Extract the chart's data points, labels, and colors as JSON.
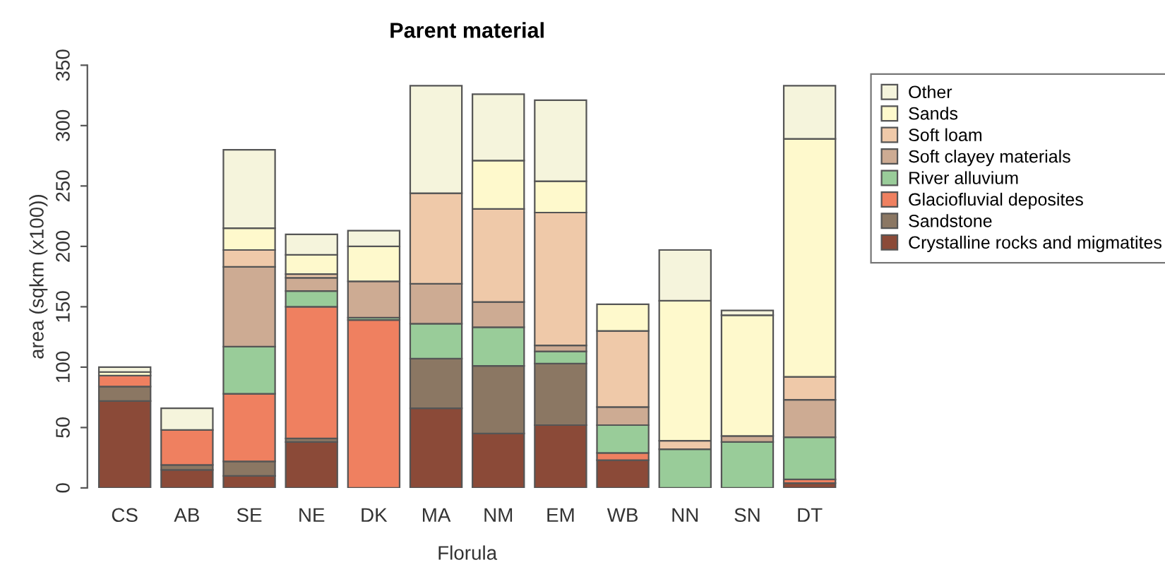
{
  "chart_data": {
    "type": "bar",
    "title": "Parent material",
    "xlabel": "Florula",
    "ylabel": "area (sqkm (x100))",
    "categories": [
      "CS",
      "AB",
      "SE",
      "NE",
      "DK",
      "MA",
      "NM",
      "EM",
      "WB",
      "NN",
      "SN",
      "DT"
    ],
    "stacked": true,
    "ylim": [
      0,
      350
    ],
    "yticks": [
      0,
      50,
      100,
      150,
      200,
      250,
      300,
      350
    ],
    "grid": false,
    "legend": "top right",
    "series": [
      {
        "name": "Crystalline rocks and migmatites",
        "color": "#8b4a38",
        "values": [
          72,
          15,
          10,
          38,
          null,
          66,
          45,
          52,
          23,
          null,
          null,
          4
        ]
      },
      {
        "name": "Sandstone",
        "color": "#8b7763",
        "values": [
          12,
          4,
          12,
          3,
          0,
          41,
          56,
          51,
          0,
          0,
          0,
          0
        ]
      },
      {
        "name": "Glaciofluvial deposites",
        "color": "#ef8060",
        "values": [
          9,
          29,
          56,
          109,
          139,
          0,
          0,
          0,
          6,
          0,
          null,
          3
        ]
      },
      {
        "name": "River alluvium",
        "color": "#99cc99",
        "values": [
          0,
          0,
          39,
          13,
          2,
          29,
          32,
          10,
          23,
          32,
          38,
          35
        ]
      },
      {
        "name": "Soft clayey materials",
        "color": "#cdab93",
        "values": [
          0,
          0,
          66,
          11,
          30,
          33,
          21,
          5,
          15,
          0,
          5,
          31
        ]
      },
      {
        "name": "Soft loam",
        "color": "#efc9a9",
        "values": [
          null,
          0,
          14,
          3,
          0,
          75,
          77,
          110,
          63,
          7,
          0,
          19
        ]
      },
      {
        "name": "Sands",
        "color": "#fef9cc",
        "values": [
          3,
          0,
          18,
          16,
          29,
          0,
          40,
          26,
          22,
          116,
          100,
          197
        ]
      },
      {
        "name": "Other",
        "color": "#f5f4dc",
        "values": [
          4,
          18,
          65,
          17,
          13,
          89,
          55,
          67,
          0,
          42,
          4,
          44
        ]
      }
    ]
  }
}
